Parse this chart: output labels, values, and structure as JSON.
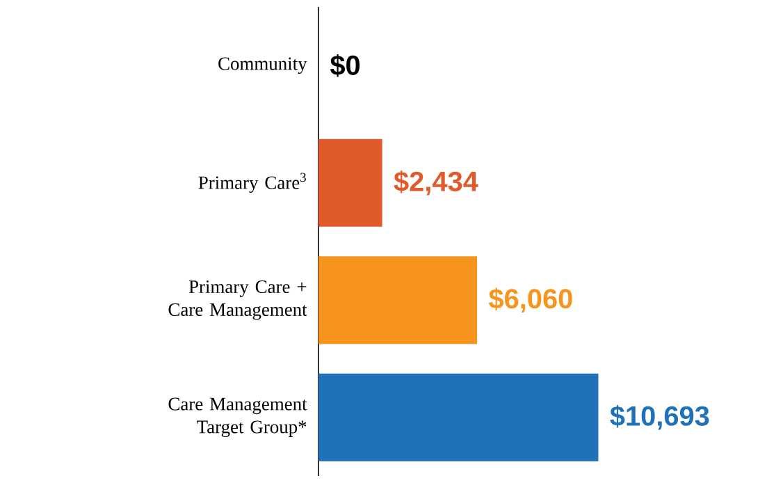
{
  "chart_data": {
    "type": "bar",
    "orientation": "horizontal",
    "categories": [
      "Community",
      "Primary Care$^{3}$",
      "Primary Care + Care Management",
      "Care Management Target Group*"
    ],
    "values": [
      0,
      2434,
      6060,
      10693
    ],
    "colors": [
      "#000000",
      "#e05a2b",
      "#f7941d",
      "#1f72b8"
    ],
    "value_labels": [
      "$0",
      "$2,434",
      "$6,060",
      "$10,693"
    ]
  }
}
